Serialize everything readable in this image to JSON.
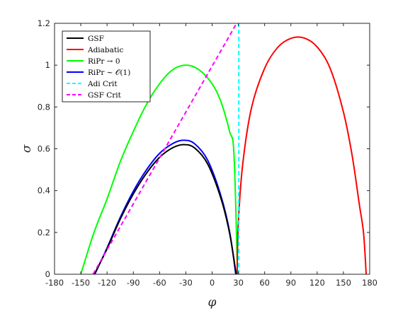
{
  "chart_data": {
    "type": "line",
    "title": "",
    "xlabel": "φ",
    "ylabel": "σ",
    "xlim": [
      -180,
      180
    ],
    "ylim": [
      0,
      1.2
    ],
    "xticks": [
      -180,
      -150,
      -120,
      -90,
      -60,
      -30,
      0,
      30,
      60,
      90,
      120,
      150,
      180
    ],
    "yticks": [
      0,
      0.2,
      0.4,
      0.6,
      0.8,
      1,
      1.2
    ],
    "xtick_labels": [
      "-180",
      "-150",
      "-120",
      "-90",
      "-60",
      "-30",
      "0",
      "30",
      "60",
      "90",
      "120",
      "150",
      "180"
    ],
    "ytick_labels": [
      "0",
      "0.2",
      "0.4",
      "0.6",
      "0.8",
      "1",
      "1.2"
    ],
    "grid": false,
    "legend_position": "top-left",
    "series": [
      {
        "name": "GSF",
        "color": "#000000",
        "style": "solid",
        "x": [
          -134.5,
          -120,
          -105,
          -90,
          -75,
          -60,
          -45,
          -32.4,
          -20,
          -5,
          10,
          20,
          27.5
        ],
        "y": [
          0,
          0.122,
          0.263,
          0.384,
          0.483,
          0.559,
          0.605,
          0.62,
          0.604,
          0.527,
          0.364,
          0.196,
          0
        ]
      },
      {
        "name": "Adiabatic",
        "color": "#ff0000",
        "style": "solid",
        "x": [
          28.5,
          30,
          35,
          45,
          60,
          75,
          90,
          105,
          120,
          135,
          150,
          160,
          168,
          173,
          176
        ],
        "y": [
          0,
          0.248,
          0.527,
          0.796,
          0.985,
          1.085,
          1.128,
          1.13,
          1.087,
          0.983,
          0.776,
          0.567,
          0.339,
          0.197,
          0
        ]
      },
      {
        "name": "RiPr → 0",
        "color": "#00ff00",
        "style": "solid",
        "x": [
          -150,
          -135,
          -120,
          -105,
          -90,
          -75,
          -60,
          -45,
          -30,
          -15,
          0,
          10,
          20,
          25,
          29
        ],
        "y": [
          0,
          0.199,
          0.36,
          0.537,
          0.683,
          0.812,
          0.911,
          0.978,
          1.0,
          0.978,
          0.911,
          0.826,
          0.683,
          0.573,
          0
        ]
      },
      {
        "name": "RiPr ∼ 𝒪(1)",
        "color": "#0000ff",
        "style": "solid",
        "x": [
          -134,
          -120,
          -105,
          -90,
          -75,
          -60,
          -45,
          -32.4,
          -20,
          -5,
          10,
          20,
          27
        ],
        "y": [
          0,
          0.126,
          0.271,
          0.397,
          0.499,
          0.578,
          0.625,
          0.641,
          0.624,
          0.545,
          0.376,
          0.203,
          0
        ]
      },
      {
        "name": "Adi Crit",
        "color": "#00ffff",
        "style": "dashed",
        "x": [
          30.5,
          30.5
        ],
        "y": [
          0,
          1.2
        ]
      },
      {
        "name": "GSF Crit",
        "color": "#ff00ff",
        "style": "dashed",
        "x": [
          -136,
          28
        ],
        "y": [
          0,
          1.2
        ]
      }
    ]
  }
}
